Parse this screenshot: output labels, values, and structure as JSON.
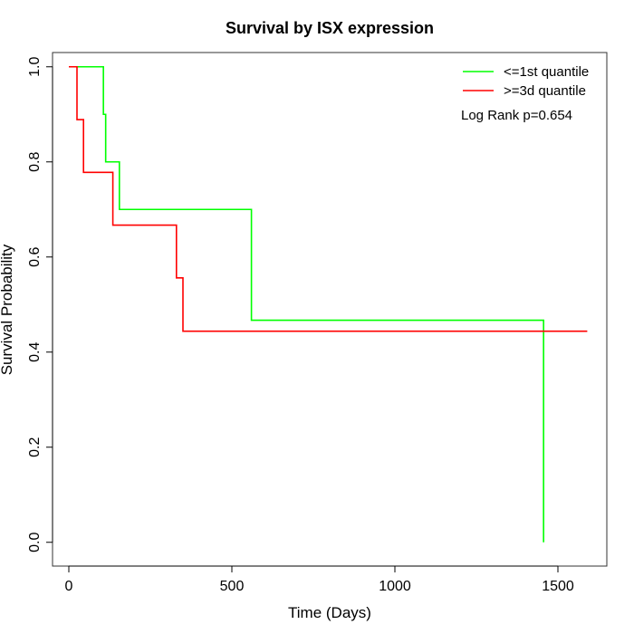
{
  "chart_data": {
    "type": "line",
    "title": "Survival by ISX expression",
    "xlabel": "Time (Days)",
    "ylabel": "Survival Probability",
    "xlim": [
      -50,
      1650
    ],
    "ylim": [
      -0.05,
      1.03
    ],
    "xticks": [
      0,
      500,
      1000,
      1500
    ],
    "yticks": [
      0.0,
      0.2,
      0.4,
      0.6,
      0.8,
      1.0
    ],
    "xtick_labels": [
      "0",
      "500",
      "1000",
      "1500"
    ],
    "ytick_labels": [
      "0.0",
      "0.2",
      "0.4",
      "0.6",
      "0.8",
      "1.0"
    ],
    "grid": false,
    "legend_position": "top-right",
    "annotation": "Log Rank p=0.654",
    "series": [
      {
        "name": "<=1st quantile",
        "color": "#00ff00",
        "step": true,
        "x": [
          0,
          106,
          113,
          155,
          560,
          1456,
          1456
        ],
        "y": [
          1.0,
          0.9,
          0.8,
          0.7,
          0.467,
          0.467,
          0.0
        ]
      },
      {
        "name": ">=3d quantile",
        "color": "#ff0000",
        "step": true,
        "x": [
          0,
          25,
          45,
          135,
          330,
          350,
          1590
        ],
        "y": [
          1.0,
          0.889,
          0.778,
          0.667,
          0.556,
          0.444,
          0.444
        ]
      }
    ]
  }
}
